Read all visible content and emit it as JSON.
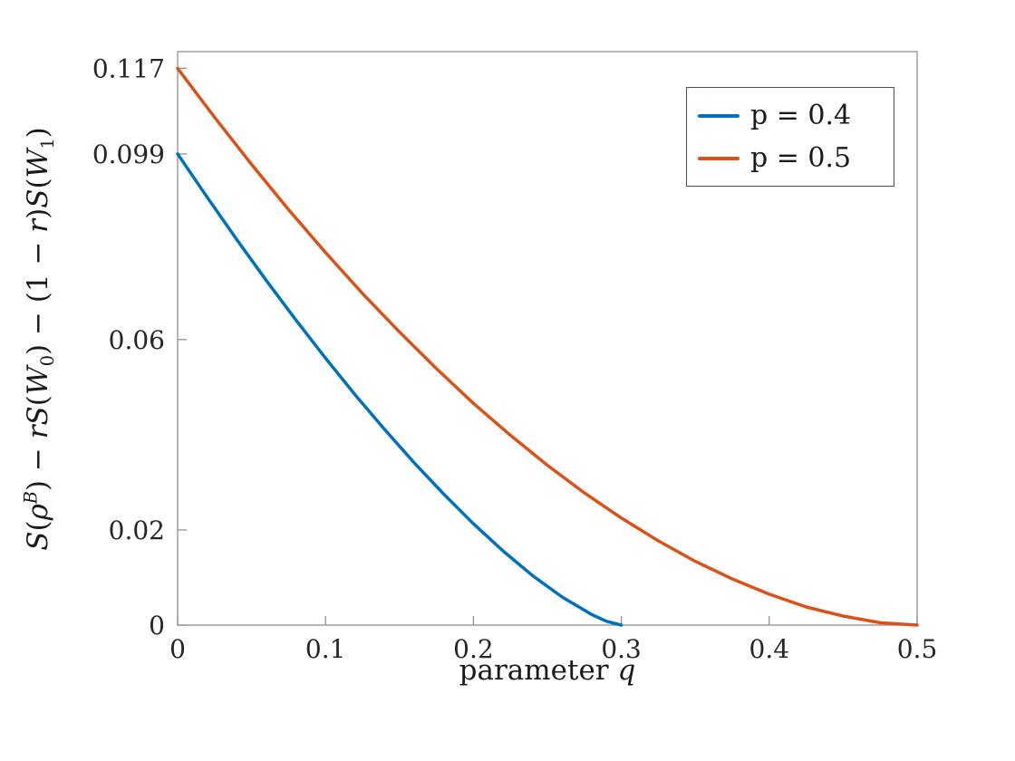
{
  "figure": {
    "background": "#ffffff"
  },
  "chart_data": {
    "type": "line",
    "title": "",
    "xlabel": "parameter q",
    "ylabel": "S(ρ^B) − rS(W_0) − (1 − r)S(W_1)",
    "xlabel_parts": [
      {
        "text": "parameter ",
        "style": "plain"
      },
      {
        "text": "q",
        "style": "italic"
      }
    ],
    "ylabel_parts": [
      {
        "text": "S",
        "style": "italic"
      },
      {
        "text": "(",
        "style": "plain"
      },
      {
        "text": "ρ",
        "style": "italic"
      },
      {
        "text": "B",
        "style": "sup"
      },
      {
        "text": ")",
        "style": "plain"
      },
      {
        "text": " − ",
        "style": "plain"
      },
      {
        "text": "rS",
        "style": "italic"
      },
      {
        "text": "(",
        "style": "plain"
      },
      {
        "text": "W",
        "style": "cal"
      },
      {
        "text": "0",
        "style": "sub"
      },
      {
        "text": ")",
        "style": "plain"
      },
      {
        "text": " − (1 − ",
        "style": "plain"
      },
      {
        "text": "r",
        "style": "italic"
      },
      {
        "text": ")",
        "style": "plain"
      },
      {
        "text": "S",
        "style": "italic"
      },
      {
        "text": "(",
        "style": "plain"
      },
      {
        "text": "W",
        "style": "cal"
      },
      {
        "text": "1",
        "style": "sub"
      },
      {
        "text": ")",
        "style": "plain"
      }
    ],
    "xlim": [
      0,
      0.5
    ],
    "ylim": [
      0,
      0.1205
    ],
    "xticks": {
      "values": [
        0,
        0.1,
        0.2,
        0.3,
        0.4,
        0.5
      ],
      "labels": [
        "0",
        "0.1",
        "0.2",
        "0.3",
        "0.4",
        "0.5"
      ]
    },
    "yticks": {
      "values": [
        0,
        0.02,
        0.06,
        0.099,
        0.117
      ],
      "labels": [
        "0",
        "0.02",
        "0.06",
        "0.099",
        "0.117"
      ]
    },
    "grid": false,
    "axis_color": "#8f8f8f",
    "tick_label_color": "#262626",
    "legend": {
      "position": "top-right",
      "border_color": "#4d4d4d",
      "background": "#ffffff"
    },
    "series": [
      {
        "name": "p = 0.4",
        "color": "#0072BD",
        "x": [
          0,
          0.02,
          0.04,
          0.06,
          0.08,
          0.1,
          0.12,
          0.14,
          0.16,
          0.18,
          0.2,
          0.22,
          0.24,
          0.26,
          0.28,
          0.29,
          0.3
        ],
        "y": [
          0.099,
          0.0899,
          0.081,
          0.0724,
          0.0641,
          0.0561,
          0.0484,
          0.0411,
          0.0341,
          0.0275,
          0.0213,
          0.0156,
          0.0104,
          0.0059,
          0.0022,
          0.0008,
          0
        ]
      },
      {
        "name": "p = 0.5",
        "color": "#D95319",
        "x": [
          0,
          0.025,
          0.05,
          0.075,
          0.1,
          0.125,
          0.15,
          0.175,
          0.2,
          0.225,
          0.25,
          0.275,
          0.3,
          0.325,
          0.35,
          0.375,
          0.4,
          0.425,
          0.45,
          0.475,
          0.5
        ],
        "y": [
          0.117,
          0.1067,
          0.0968,
          0.0873,
          0.0783,
          0.0697,
          0.0616,
          0.0539,
          0.0466,
          0.0399,
          0.0336,
          0.0278,
          0.0225,
          0.0177,
          0.0134,
          0.0097,
          0.0065,
          0.0038,
          0.0019,
          0.0005,
          0
        ]
      }
    ]
  }
}
